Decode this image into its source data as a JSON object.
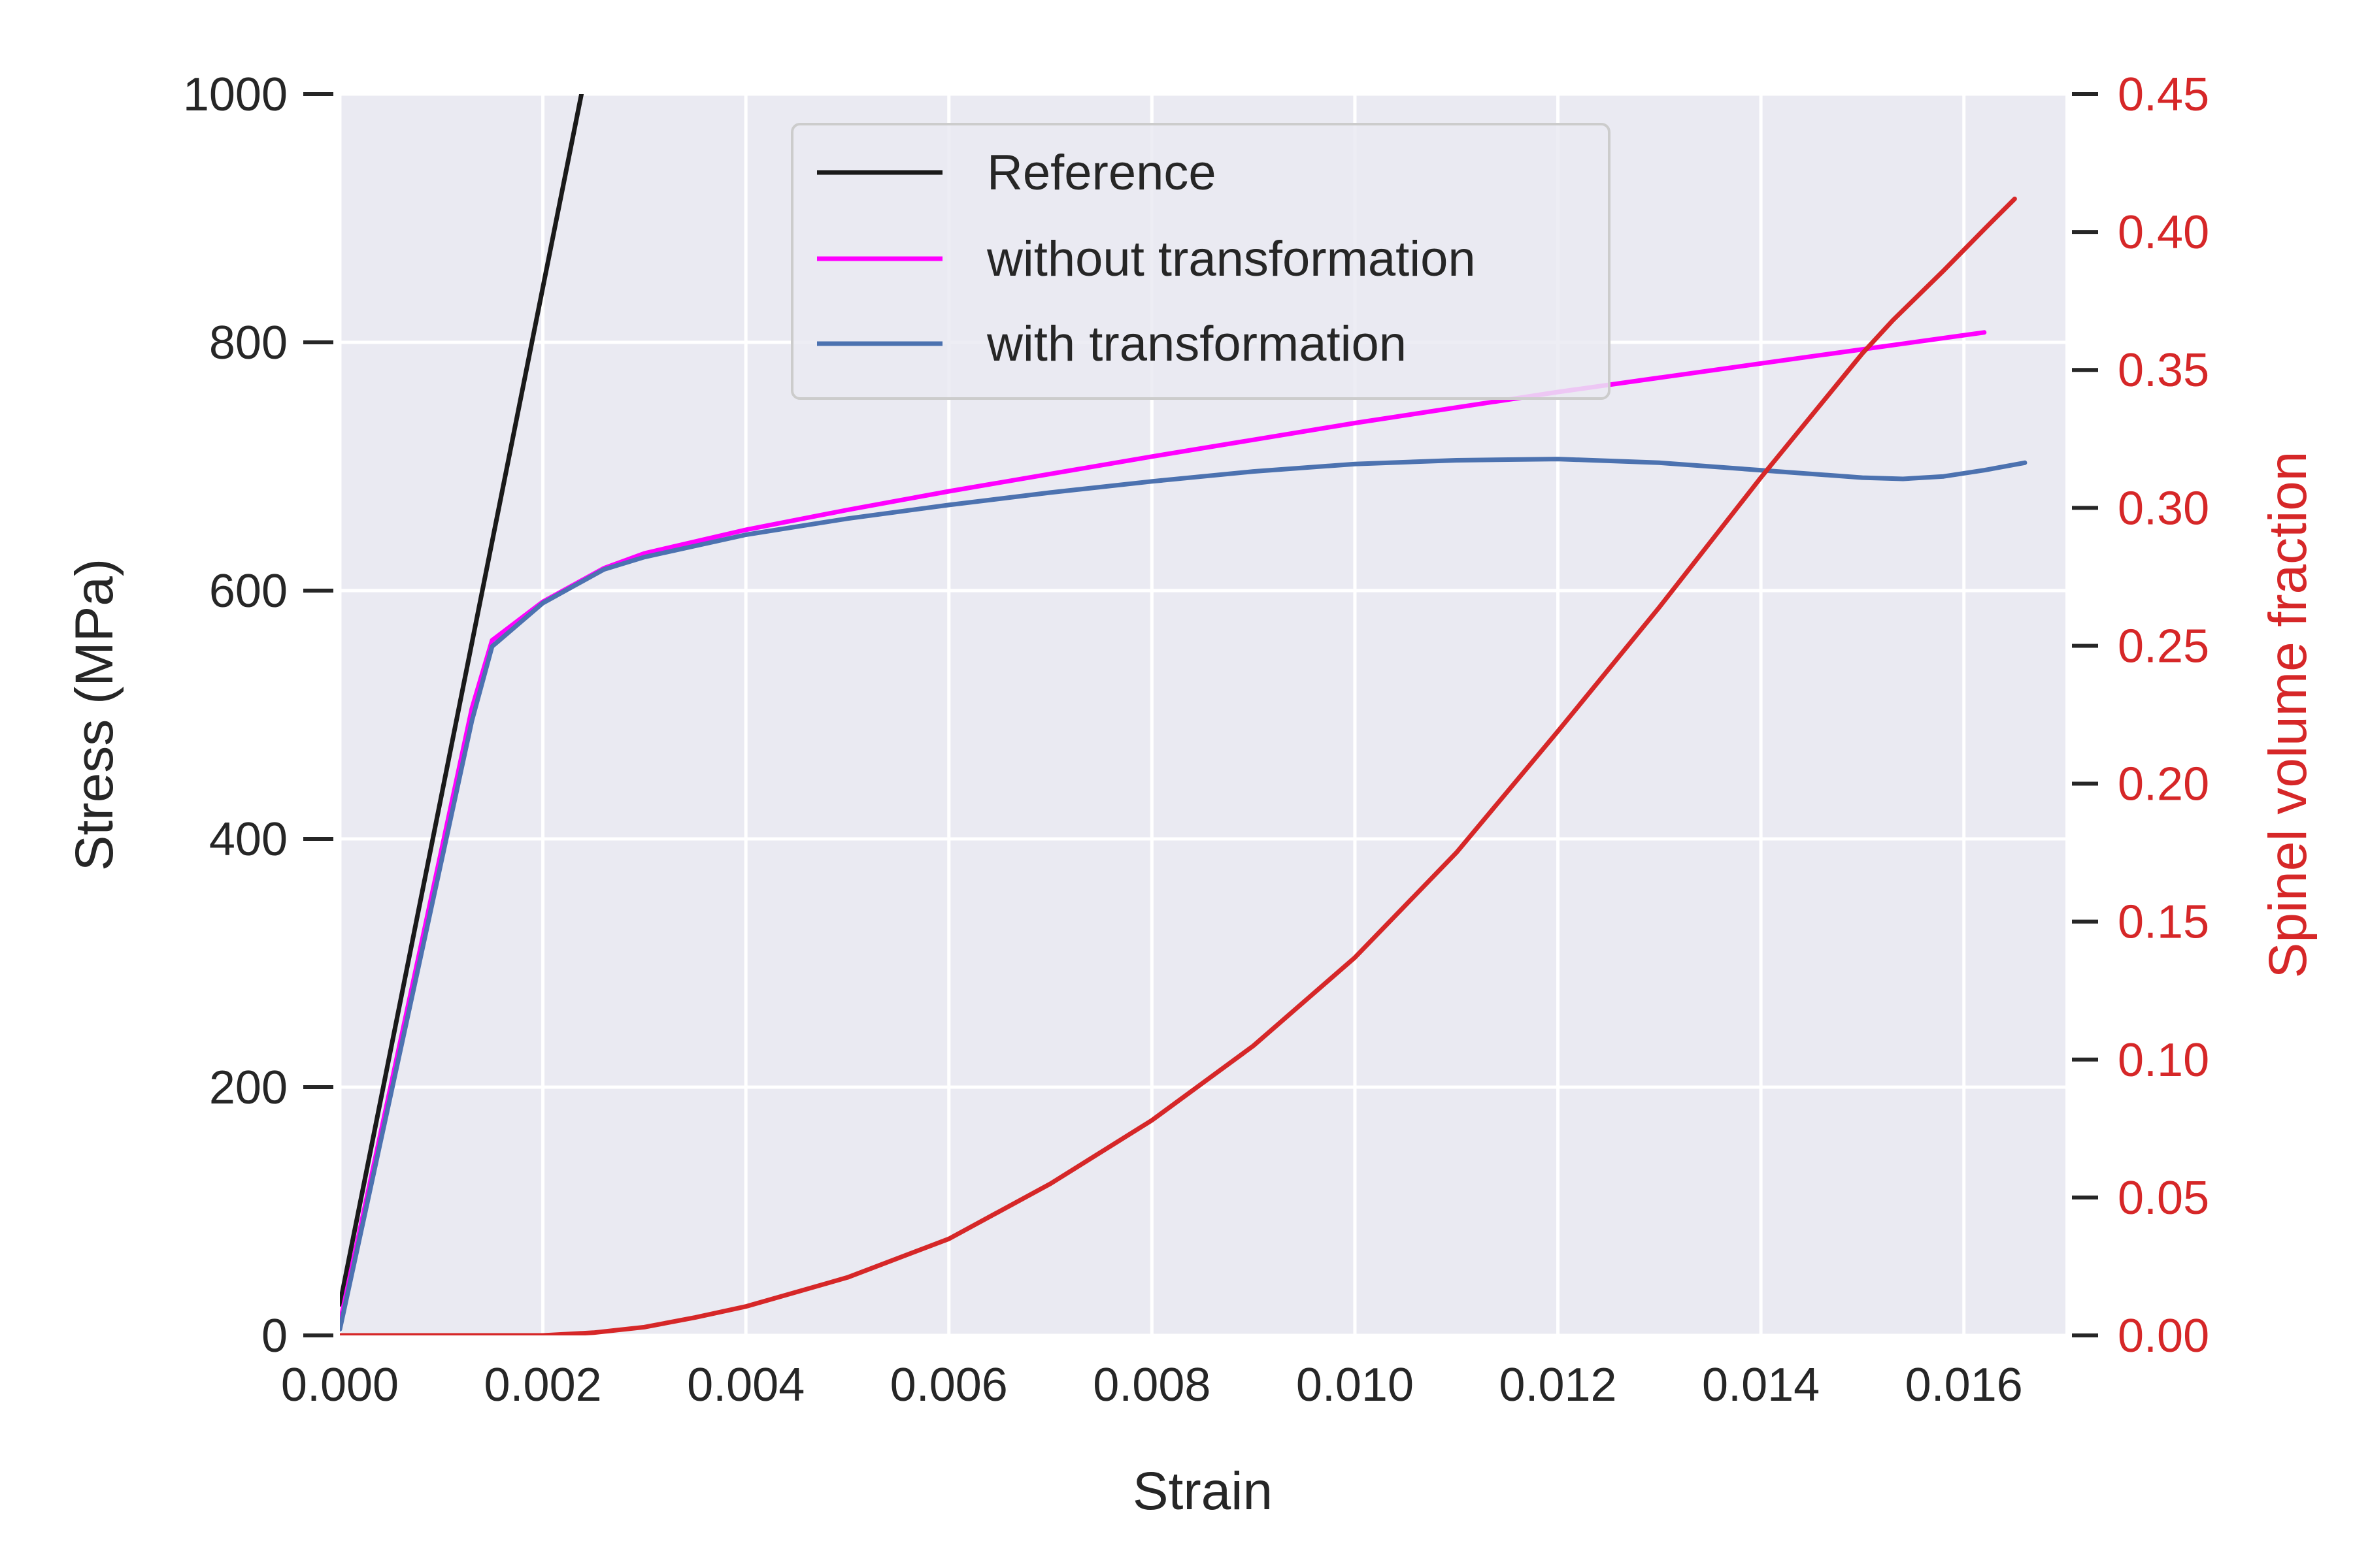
{
  "chart_data": {
    "type": "line",
    "xlabel": "Strain",
    "ylabel": "Stress (MPa)",
    "y2label": "Spinel volume fraction",
    "xlim": [
      0.0,
      0.017
    ],
    "ylim": [
      0,
      1000
    ],
    "y2lim": [
      0.0,
      0.45
    ],
    "grid": true,
    "legend_position": "upper-center",
    "x_ticks": [
      "0.000",
      "0.002",
      "0.004",
      "0.006",
      "0.008",
      "0.010",
      "0.012",
      "0.014",
      "0.016"
    ],
    "y_ticks": [
      "0",
      "200",
      "400",
      "600",
      "800",
      "1000"
    ],
    "y2_ticks": [
      "0.00",
      "0.05",
      "0.10",
      "0.15",
      "0.20",
      "0.25",
      "0.30",
      "0.35",
      "0.40",
      "0.45"
    ],
    "series": [
      {
        "name": "Reference",
        "axis": "left",
        "color": "#1a1a1a",
        "x": [
          0.0,
          0.00238
        ],
        "y": [
          25,
          1000
        ]
      },
      {
        "name": "without transformation",
        "axis": "left",
        "color": "#ff00ff",
        "x": [
          0.0,
          0.0013,
          0.0015,
          0.002,
          0.0026,
          0.003,
          0.004,
          0.005,
          0.006,
          0.008,
          0.01,
          0.012,
          0.014,
          0.0162
        ],
        "y": [
          10,
          505,
          560,
          591,
          618,
          630,
          649,
          665,
          680,
          708,
          735,
          760,
          783,
          808
        ]
      },
      {
        "name": "with transformation",
        "axis": "left",
        "color": "#4c72b0",
        "x": [
          0.0,
          0.0013,
          0.0015,
          0.002,
          0.0026,
          0.003,
          0.004,
          0.005,
          0.006,
          0.007,
          0.008,
          0.009,
          0.01,
          0.011,
          0.012,
          0.013,
          0.014,
          0.015,
          0.0154,
          0.0158,
          0.0162,
          0.0166
        ],
        "y": [
          5,
          495,
          555,
          590,
          617,
          627,
          645,
          658,
          669,
          679,
          688,
          696,
          702,
          705,
          706,
          703,
          697,
          691,
          690,
          692,
          697,
          703
        ]
      },
      {
        "axis": "right",
        "color": "#d62728",
        "x": [
          0.0,
          0.002,
          0.0025,
          0.003,
          0.0035,
          0.004,
          0.005,
          0.006,
          0.007,
          0.008,
          0.009,
          0.01,
          0.011,
          0.012,
          0.013,
          0.014,
          0.015,
          0.0153,
          0.0158,
          0.0162,
          0.0165
        ],
        "y": [
          0.0,
          0.0,
          0.001,
          0.003,
          0.0065,
          0.0105,
          0.021,
          0.035,
          0.055,
          0.078,
          0.105,
          0.137,
          0.175,
          0.219,
          0.264,
          0.311,
          0.356,
          0.368,
          0.386,
          0.401,
          0.412
        ]
      }
    ]
  }
}
